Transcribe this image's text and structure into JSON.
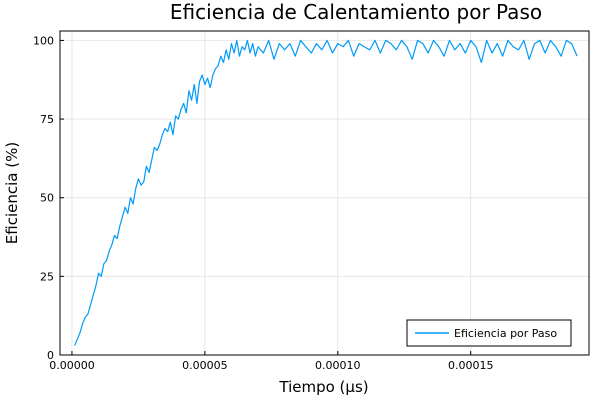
{
  "chart_data": {
    "type": "line",
    "title": "Eficiencia de Calentamiento por Paso",
    "xlabel": "Tiempo (µs)",
    "ylabel": "Eficiencia (%)",
    "xlim": [
      -4.5e-06,
      0.0001945
    ],
    "ylim": [
      0,
      103
    ],
    "xticks": [
      0,
      5e-05,
      0.0001,
      0.00015
    ],
    "xtick_labels": [
      "0.00000",
      "0.00005",
      "0.00010",
      "0.00015"
    ],
    "yticks": [
      0,
      25,
      50,
      75,
      100
    ],
    "ytick_labels": [
      "0",
      "25",
      "50",
      "75",
      "100"
    ],
    "grid": true,
    "legend_position": "bottom-right",
    "series": [
      {
        "name": "Eficiencia por Paso",
        "color": "#009af9",
        "x": [
          1e-06,
          2e-06,
          3e-06,
          4e-06,
          5e-06,
          6e-06,
          7e-06,
          8e-06,
          9e-06,
          1e-05,
          1.1e-05,
          1.2e-05,
          1.3e-05,
          1.4e-05,
          1.5e-05,
          1.6e-05,
          1.7e-05,
          1.8e-05,
          1.9e-05,
          2e-05,
          2.1e-05,
          2.2e-05,
          2.3e-05,
          2.4e-05,
          2.5e-05,
          2.6e-05,
          2.7e-05,
          2.8e-05,
          2.9e-05,
          3e-05,
          3.1e-05,
          3.2e-05,
          3.3e-05,
          3.4e-05,
          3.5e-05,
          3.6e-05,
          3.7e-05,
          3.8e-05,
          3.9e-05,
          4e-05,
          4.1e-05,
          4.2e-05,
          4.3e-05,
          4.4e-05,
          4.5e-05,
          4.6e-05,
          4.7e-05,
          4.8e-05,
          4.9e-05,
          5e-05,
          5.1e-05,
          5.2e-05,
          5.3e-05,
          5.4e-05,
          5.5e-05,
          5.6e-05,
          5.7e-05,
          5.8e-05,
          5.9e-05,
          6e-05,
          6.1e-05,
          6.2e-05,
          6.3e-05,
          6.4e-05,
          6.5e-05,
          6.6e-05,
          6.7e-05,
          6.8e-05,
          6.9e-05,
          7e-05,
          7.2e-05,
          7.4e-05,
          7.6e-05,
          7.8e-05,
          8e-05,
          8.2e-05,
          8.4e-05,
          8.6e-05,
          8.8e-05,
          9e-05,
          9.2e-05,
          9.4e-05,
          9.6e-05,
          9.8e-05,
          0.0001,
          0.000102,
          0.000104,
          0.000106,
          0.000108,
          0.00011,
          0.000112,
          0.000114,
          0.000116,
          0.000118,
          0.00012,
          0.000122,
          0.000124,
          0.000126,
          0.000128,
          0.00013,
          0.000132,
          0.000134,
          0.000136,
          0.000138,
          0.00014,
          0.000142,
          0.000144,
          0.000146,
          0.000148,
          0.00015,
          0.000152,
          0.000154,
          0.000156,
          0.000158,
          0.00016,
          0.000162,
          0.000164,
          0.000166,
          0.000168,
          0.00017,
          0.000172,
          0.000174,
          0.000176,
          0.000178,
          0.00018,
          0.000182,
          0.000184,
          0.000186,
          0.000188,
          0.00019
        ],
        "y": [
          3,
          5,
          7,
          10,
          12,
          13,
          16,
          19,
          22,
          26,
          25,
          29,
          30,
          33,
          35,
          38,
          37,
          41,
          44,
          47,
          45,
          50,
          48,
          53,
          56,
          54,
          55,
          60,
          58,
          62,
          66,
          65,
          67,
          70,
          72,
          71,
          74,
          70,
          76,
          75,
          78,
          80,
          77,
          84,
          81,
          86,
          80,
          87,
          89,
          86,
          88,
          85,
          89,
          91,
          92,
          95,
          93,
          97,
          94,
          99,
          96,
          100,
          95,
          98,
          97,
          100,
          96,
          99,
          95,
          98,
          96,
          100,
          94,
          99,
          97,
          99,
          95,
          100,
          98,
          96,
          99,
          97,
          100,
          96,
          99,
          98,
          100,
          95,
          99,
          98,
          97,
          100,
          96,
          100,
          99,
          97,
          100,
          98,
          94,
          100,
          99,
          96,
          100,
          98,
          95,
          100,
          97,
          99,
          96,
          100,
          98,
          93,
          100,
          96,
          99,
          95,
          100,
          98,
          97,
          100,
          94,
          99,
          100,
          96,
          100,
          98,
          95,
          100,
          99,
          95
        ]
      }
    ]
  }
}
